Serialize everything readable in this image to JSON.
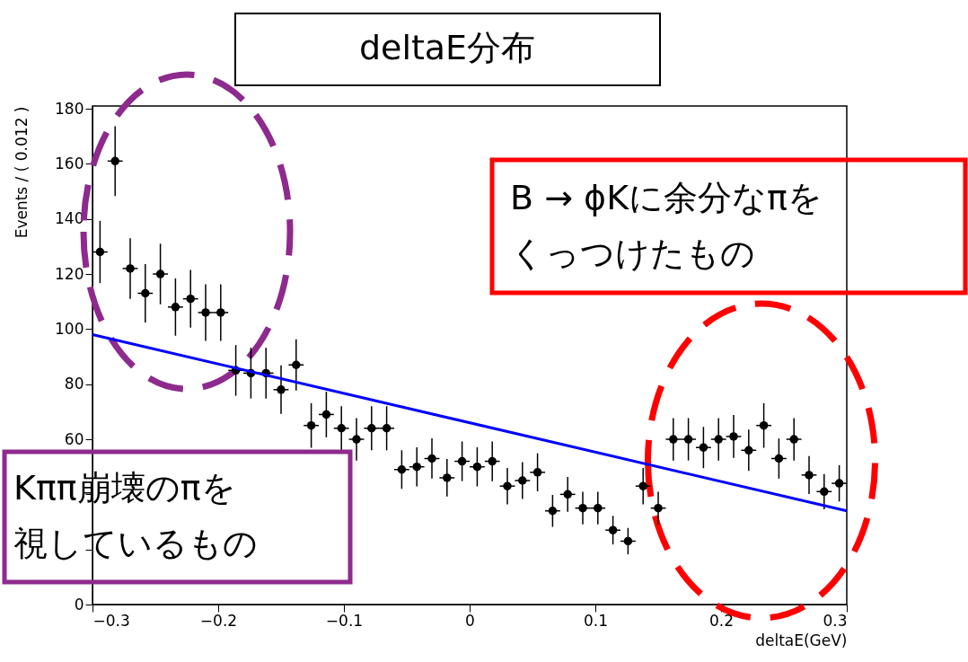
{
  "chart_data": {
    "type": "scatter",
    "title": "deltaE分布",
    "xlabel": "deltaE(GeV)",
    "ylabel": "Events / ( 0.012 )",
    "x": [
      -0.294,
      -0.282,
      -0.27,
      -0.258,
      -0.246,
      -0.234,
      -0.222,
      -0.21,
      -0.198,
      -0.186,
      -0.174,
      -0.162,
      -0.15,
      -0.138,
      -0.126,
      -0.114,
      -0.102,
      -0.09,
      -0.078,
      -0.066,
      -0.054,
      -0.042,
      -0.03,
      -0.018,
      -0.006,
      0.006,
      0.018,
      0.03,
      0.042,
      0.054,
      0.066,
      0.078,
      0.09,
      0.102,
      0.114,
      0.126,
      0.138,
      0.15,
      0.162,
      0.174,
      0.186,
      0.198,
      0.21,
      0.222,
      0.234,
      0.246,
      0.258,
      0.27,
      0.282,
      0.294
    ],
    "series": [
      {
        "color": "#000000",
        "values": [
          128,
          161,
          122,
          113,
          120,
          108,
          111,
          106,
          106,
          85,
          84,
          84,
          78,
          87,
          65,
          69,
          64,
          60,
          64,
          64,
          49,
          50,
          53,
          46,
          52,
          50,
          52,
          43,
          45,
          48,
          34,
          40,
          35,
          35,
          27,
          23,
          43,
          35,
          60,
          60,
          57,
          60,
          61,
          56,
          65,
          53,
          60,
          47,
          41,
          44
        ],
        "errors": [
          11.3,
          12.7,
          11.0,
          10.6,
          11.0,
          10.4,
          10.5,
          10.3,
          10.3,
          9.2,
          9.2,
          9.2,
          8.8,
          9.3,
          8.1,
          8.3,
          8.0,
          7.7,
          8.0,
          8.0,
          7.0,
          7.1,
          7.3,
          6.8,
          7.2,
          7.1,
          7.2,
          6.6,
          6.7,
          6.9,
          5.8,
          6.3,
          5.9,
          5.9,
          5.2,
          4.8,
          6.6,
          5.9,
          7.7,
          7.7,
          7.5,
          7.7,
          7.8,
          7.5,
          8.1,
          7.3,
          7.7,
          6.9,
          6.4,
          6.6
        ],
        "xerrors": [
          0.006,
          0.006,
          0.006,
          0.006,
          0.006,
          0.006,
          0.006,
          0.006,
          0.006,
          0.006,
          0.006,
          0.006,
          0.006,
          0.006,
          0.006,
          0.006,
          0.006,
          0.006,
          0.006,
          0.006,
          0.006,
          0.006,
          0.006,
          0.006,
          0.006,
          0.006,
          0.006,
          0.006,
          0.006,
          0.006,
          0.006,
          0.006,
          0.006,
          0.006,
          0.006,
          0.006,
          0.006,
          0.006,
          0.006,
          0.006,
          0.006,
          0.006,
          0.006,
          0.006,
          0.006,
          0.006,
          0.006,
          0.006,
          0.006,
          0.006
        ]
      },
      {
        "type": "line",
        "marker": "none",
        "color": "#0000ff",
        "x": [
          -0.3,
          0.3
        ],
        "values": [
          98,
          34
        ]
      }
    ],
    "xlim": [
      -0.3,
      0.3
    ],
    "xticks": [
      -0.3,
      -0.2,
      -0.1,
      0,
      0.1,
      0.2,
      0.3
    ],
    "ylim": [
      0,
      181
    ],
    "yticks": [
      0,
      {
        "value": 20,
        "label": null
      },
      {
        "value": 40,
        "label": null
      },
      60,
      80,
      100,
      120,
      140,
      160,
      180
    ],
    "marker": "circle",
    "grid": false,
    "annotations": [
      "B → ϕKに余分なπを",
      "くっつけたもの",
      "Kππ崩壊のπを",
      "視しているもの"
    ]
  }
}
